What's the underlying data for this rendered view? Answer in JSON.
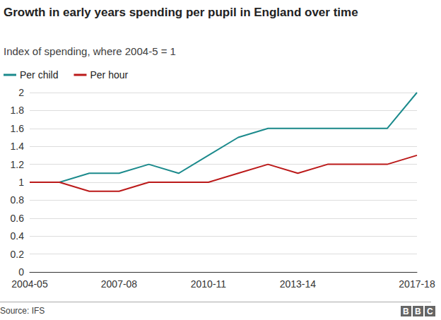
{
  "chart_data": {
    "type": "line",
    "title": "Growth in early years spending per pupil in England over time",
    "subtitle": "Index of spending, where 2004-5 = 1",
    "source": "Source: IFS",
    "logo": "BBC",
    "categories": [
      "2004-05",
      null,
      null,
      "2007-08",
      null,
      null,
      "2010-11",
      null,
      null,
      "2013-14",
      null,
      null,
      null,
      "2017-18"
    ],
    "series": [
      {
        "name": "Per child",
        "color": "#1b8a8c",
        "values": [
          1,
          1,
          1.1,
          1.1,
          1.2,
          1.1,
          1.3,
          1.5,
          1.6,
          1.6,
          1.6,
          1.6,
          1.6,
          2
        ]
      },
      {
        "name": "Per hour",
        "color": "#bb1919",
        "values": [
          1,
          1,
          0.9,
          0.9,
          1,
          1,
          1,
          1.1,
          1.2,
          1.1,
          1.2,
          1.2,
          1.2,
          1.3
        ]
      }
    ],
    "ylim": [
      0,
      2
    ],
    "yticks": [
      0,
      0.2,
      0.4,
      0.6,
      0.8,
      1,
      1.2,
      1.4,
      1.6,
      1.8,
      2
    ],
    "grid": true,
    "legend": "top-left"
  }
}
